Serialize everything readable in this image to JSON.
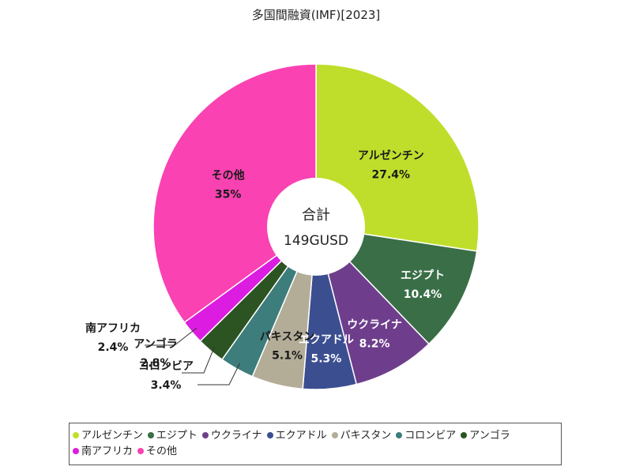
{
  "chart_data": {
    "type": "pie",
    "title": "多国間融資(IMF)[2023]",
    "center_title": "合計",
    "center_value": "149GUSD",
    "slices": [
      {
        "label": "アルゼンチン",
        "value": 27.4,
        "value_label": "27.4%",
        "color": "#bfde2c"
      },
      {
        "label": "エジプト",
        "value": 10.4,
        "value_label": "10.4%",
        "color": "#3a6e47"
      },
      {
        "label": "ウクライナ",
        "value": 8.2,
        "value_label": "8.2%",
        "color": "#6e3e8c"
      },
      {
        "label": "エクアドル",
        "value": 5.3,
        "value_label": "5.3%",
        "color": "#3b4e90"
      },
      {
        "label": "パキスタン",
        "value": 5.1,
        "value_label": "5.1%",
        "color": "#b3ad98"
      },
      {
        "label": "コロンビア",
        "value": 3.4,
        "value_label": "3.4%",
        "color": "#3d7d7b"
      },
      {
        "label": "アンゴラ",
        "value": 2.8,
        "value_label": "2.8%",
        "color": "#2c5423"
      },
      {
        "label": "南アフリカ",
        "value": 2.4,
        "value_label": "2.4%",
        "color": "#dc1ce0"
      },
      {
        "label": "その他",
        "value": 35,
        "value_label": "35%",
        "color": "#fa42b2"
      }
    ]
  }
}
